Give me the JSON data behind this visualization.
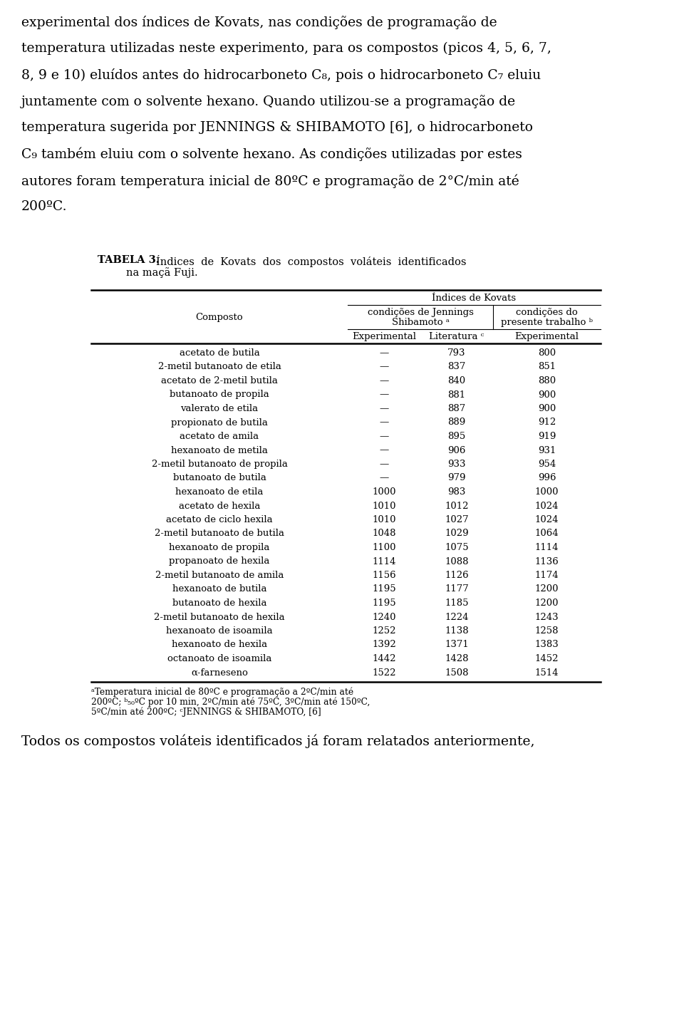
{
  "title_bold": "TABELA 3.",
  "title_rest": "Índices  de  Kovats  dos  compostos  voláteis  identificados",
  "title_line2": "na maçã Fuji.",
  "header_row1": "Índices de Kovats",
  "col_composto": "Composto",
  "rows": [
    [
      "acetato de butila",
      "—",
      "793",
      "800"
    ],
    [
      "2-metil butanoato de etila",
      "—",
      "837",
      "851"
    ],
    [
      "acetato de 2-metil butila",
      "—",
      "840",
      "880"
    ],
    [
      "butanoato de propila",
      "—",
      "881",
      "900"
    ],
    [
      "valerato de etila",
      "—",
      "887",
      "900"
    ],
    [
      "propionato de butila",
      "—",
      "889",
      "912"
    ],
    [
      "acetato de amila",
      "—",
      "895",
      "919"
    ],
    [
      "hexanoato de metila",
      "—",
      "906",
      "931"
    ],
    [
      "2-metil butanoato de propila",
      "—",
      "933",
      "954"
    ],
    [
      "butanoato de butila",
      "—",
      "979",
      "996"
    ],
    [
      "hexanoato de etila",
      "1000",
      "983",
      "1000"
    ],
    [
      "acetato de hexila",
      "1010",
      "1012",
      "1024"
    ],
    [
      "acetato de ciclo hexila",
      "1010",
      "1027",
      "1024"
    ],
    [
      "2-metil butanoato de butila",
      "1048",
      "1029",
      "1064"
    ],
    [
      "hexanoato de propila",
      "1100",
      "1075",
      "1114"
    ],
    [
      "propanoato de hexila",
      "1114",
      "1088",
      "1136"
    ],
    [
      "2-metil butanoato de amila",
      "1156",
      "1126",
      "1174"
    ],
    [
      "hexanoato de butila",
      "1195",
      "1177",
      "1200"
    ],
    [
      "butanoato de hexila",
      "1195",
      "1185",
      "1200"
    ],
    [
      "2-metil butanoato de hexila",
      "1240",
      "1224",
      "1243"
    ],
    [
      "hexanoato de isoamila",
      "1252",
      "1138",
      "1258"
    ],
    [
      "hexanoato de hexila",
      "1392",
      "1371",
      "1383"
    ],
    [
      "octanoato de isoamila",
      "1442",
      "1428",
      "1452"
    ],
    [
      "α-farneseno",
      "1522",
      "1508",
      "1514"
    ]
  ],
  "top_lines": [
    "experimental dos índices de Kovats, nas condições de programação de",
    "temperatura utilizadas neste experimento, para os compostos (picos 4, 5, 6, 7,",
    "8, 9 e 10) eluídos antes do hidrocarboneto C₈, pois o hidrocarboneto C₇ eluiu",
    "juntamente com o solvente hexano. Quando utilizou-se a programação de",
    "temperatura sugerida por JENNINGS & SHIBAMOTO [6], o hidrocarboneto",
    "C₉ também eluiu com o solvente hexano. As condições utilizadas por estes",
    "autores foram temperatura inicial de 80ºC e programação de 2°C/min até",
    "200ºC."
  ],
  "fn_line1": "ᵃTemperatura inicial de 80ºC e programação a 2ºC/min até",
  "fn_line2": "200ºC; ᵇ₅₀ºC por 10 min, 2ºC/min até 75ºC, 3ºC/min até 150ºC,",
  "fn_line3": "5ºC/min até 200ºC; ᶜJENNINGS & SHIBAMOTO, [6]",
  "bottom_text": "Todos os compostos voláteis identificados já foram relatados anteriormente,",
  "background_color": "#ffffff",
  "text_color": "#000000"
}
